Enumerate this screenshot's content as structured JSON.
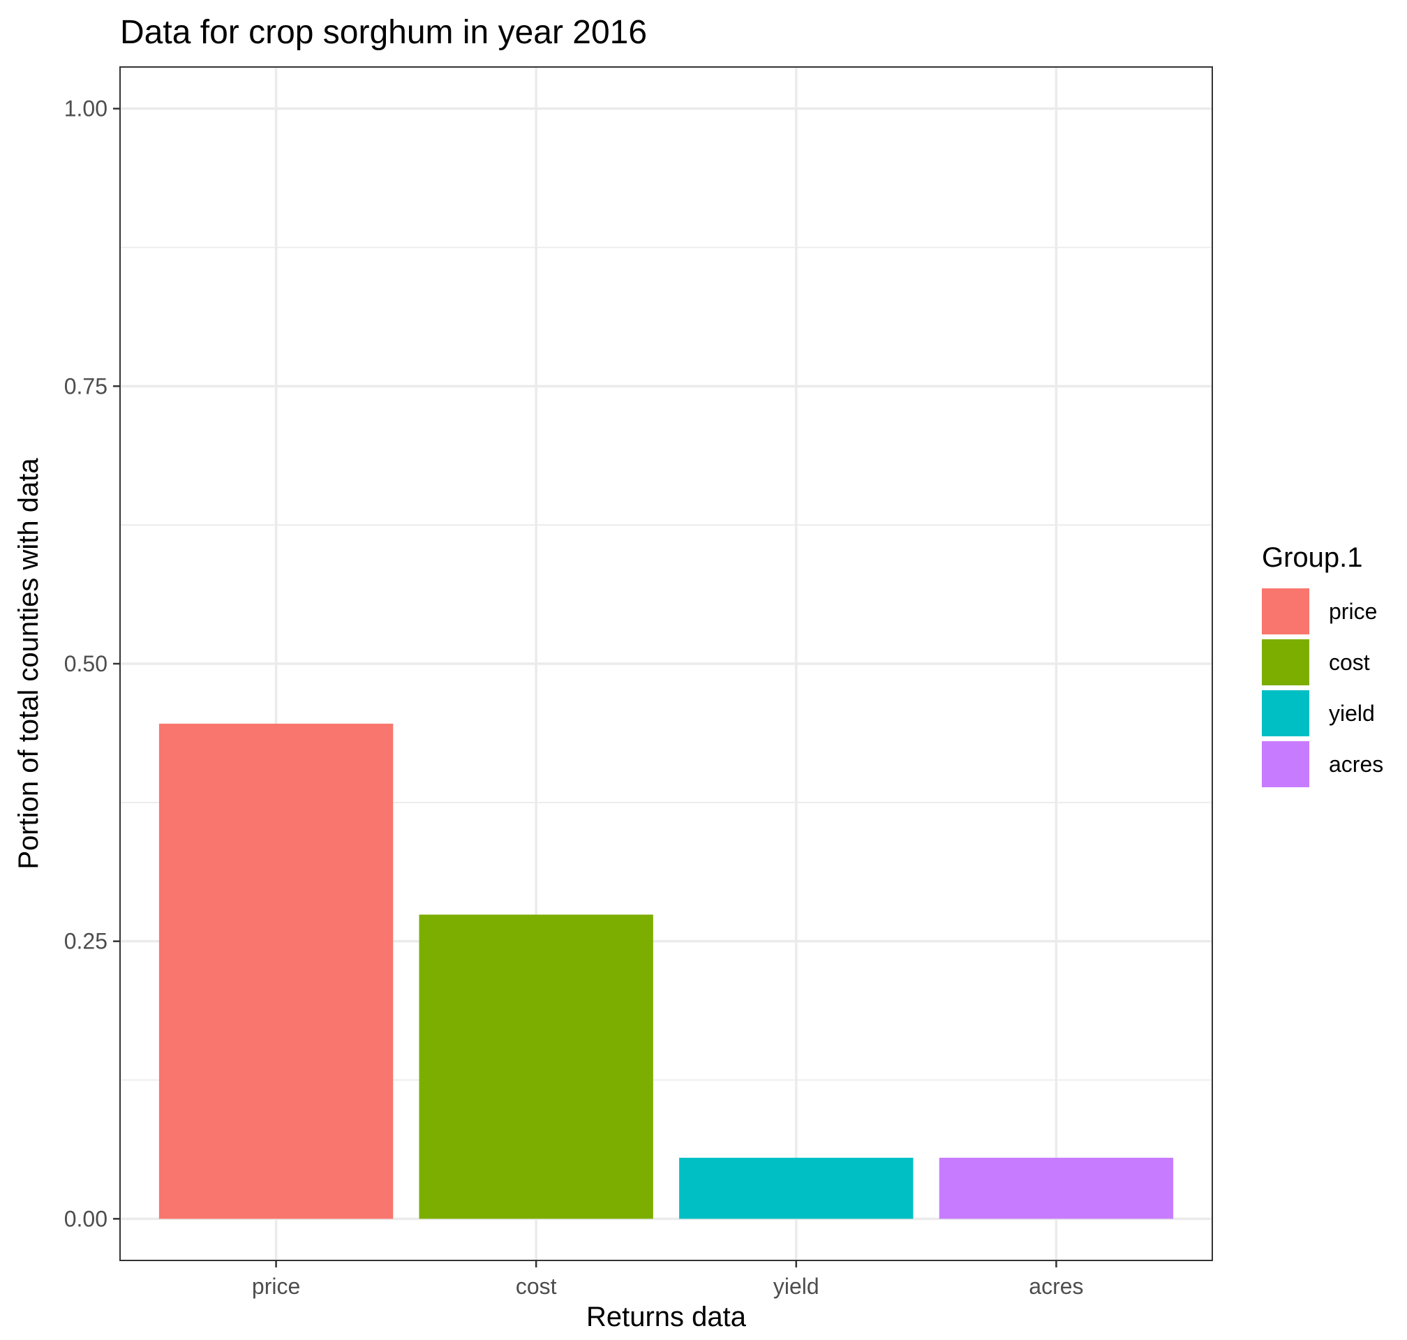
{
  "chart_data": {
    "type": "bar",
    "title": "Data for crop sorghum in year 2016",
    "xlabel": "Returns data",
    "ylabel": "Portion of total counties with data",
    "categories": [
      "price",
      "cost",
      "yield",
      "acres"
    ],
    "values": [
      0.446,
      0.274,
      0.055,
      0.055
    ],
    "colors": [
      "#F8766D",
      "#7CAE00",
      "#00BFC4",
      "#C77CFF"
    ],
    "ylim": [
      -0.0375,
      1.0375
    ],
    "yticks": [
      0.0,
      0.25,
      0.5,
      0.75,
      1.0
    ],
    "ytick_labels": [
      "0.00",
      "0.25",
      "0.50",
      "0.75",
      "1.00"
    ],
    "grid": true,
    "legend": {
      "title": "Group.1",
      "position": "right",
      "entries": [
        "price",
        "cost",
        "yield",
        "acres"
      ]
    }
  }
}
